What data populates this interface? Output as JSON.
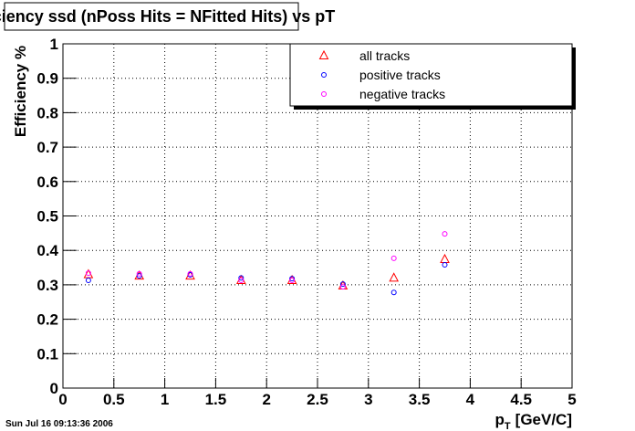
{
  "chart_data": {
    "type": "scatter",
    "title": "efficiency ssd (nPoss Hits = NFitted Hits) vs pT",
    "x_label": [
      "p",
      "T",
      "[GeV/C]"
    ],
    "y_label": "Efficiency %",
    "timestamp": "Sun Jul 16 09:13:36 2006",
    "xlim": [
      0,
      5
    ],
    "xticks": [
      0,
      0.5,
      1,
      1.5,
      2,
      2.5,
      3,
      3.5,
      4,
      4.5,
      5
    ],
    "ylim": [
      0,
      1
    ],
    "yticks": [
      0,
      0.1,
      0.2,
      0.3,
      0.4,
      0.5,
      0.6,
      0.7,
      0.8,
      0.9,
      1
    ],
    "grid": true,
    "legend": "upper right",
    "x": [
      0.25,
      0.75,
      1.25,
      1.75,
      2.25,
      2.75,
      3.25,
      3.75
    ],
    "series": [
      {
        "name": "all tracks",
        "color": "#ff0000",
        "marker": "triangle",
        "values": [
          0.33,
          0.326,
          0.326,
          0.313,
          0.313,
          0.297,
          0.32,
          0.374
        ]
      },
      {
        "name": "positive tracks",
        "color": "#0000ff",
        "marker": "circle",
        "values": [
          0.313,
          0.326,
          0.329,
          0.32,
          0.318,
          0.302,
          0.278,
          0.358
        ]
      },
      {
        "name": "negative tracks",
        "color": "#ff00ff",
        "marker": "circle",
        "values": [
          0.334,
          0.332,
          0.332,
          0.313,
          0.313,
          0.294,
          0.377,
          0.448
        ]
      }
    ]
  }
}
